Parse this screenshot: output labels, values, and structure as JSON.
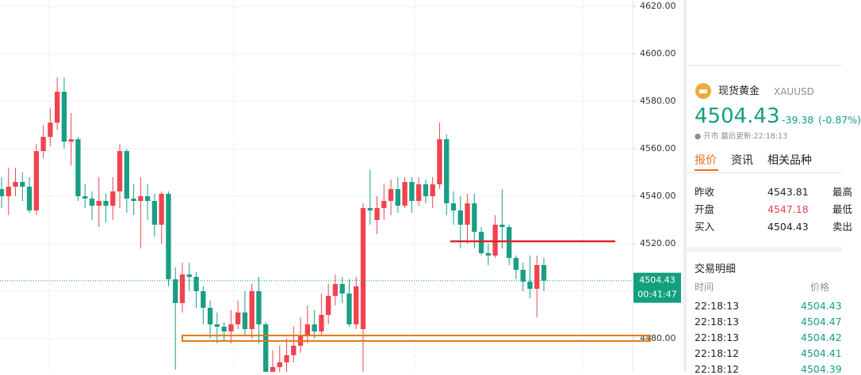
{
  "chart_data": {
    "type": "candlestick",
    "ylim": [
      4466.33,
      4622.67
    ],
    "yticks": [
      {
        "value": 4620,
        "label": "4620.00"
      },
      {
        "value": 4600,
        "label": "4600.00"
      },
      {
        "value": 4580,
        "label": "4580.00"
      },
      {
        "value": 4560,
        "label": "4560.00"
      },
      {
        "value": 4540,
        "label": "4540.00"
      },
      {
        "value": 4520,
        "label": "4520.00"
      },
      {
        "value": 4500,
        "label": "4500.00"
      },
      {
        "value": 4480,
        "label": "4480.00"
      }
    ],
    "up_color": "#f0434f",
    "down_color": "#1a9e86",
    "grid": true,
    "open": [
      4543,
      4540,
      4544,
      4546,
      4544,
      4534,
      4559,
      4565,
      4571,
      4584,
      4563,
      4564,
      4540,
      4539,
      4536,
      4538,
      4536,
      4542,
      4559,
      4539,
      4538,
      4540,
      4538,
      4528,
      4541,
      4505,
      4495,
      4507,
      4506,
      4500,
      4493,
      4486,
      4485,
      4483,
      4486,
      4491,
      4484,
      4500,
      4486,
      4466,
      4468,
      4470,
      4473,
      4477,
      4481,
      4486,
      4483,
      4490,
      4498,
      4503,
      4499,
      4486,
      4484,
      4535,
      4530,
      4535,
      4538,
      4543,
      4536,
      4546,
      4538,
      4545,
      4540,
      4545,
      4564,
      4537,
      4534,
      4528,
      4537,
      4525,
      4516,
      4515,
      4528,
      4527,
      4514,
      4509,
      4504,
      4501,
      4511
    ],
    "high": [
      4548,
      4552,
      4552,
      4550,
      4548,
      4562,
      4570,
      4577,
      4590,
      4590,
      4575,
      4565,
      4545,
      4542,
      4548,
      4541,
      4548,
      4562,
      4560,
      4545,
      4548,
      4545,
      4541,
      4542,
      4542,
      4510,
      4512,
      4512,
      4508,
      4502,
      4496,
      4491,
      4487,
      4492,
      4496,
      4500,
      4503,
      4506,
      4487,
      4475,
      4477,
      4480,
      4485,
      4489,
      4494,
      4492,
      4499,
      4503,
      4507,
      4506,
      4505,
      4506,
      4537,
      4551,
      4540,
      4545,
      4547,
      4548,
      4548,
      4548,
      4548,
      4547,
      4548,
      4571,
      4566,
      4542,
      4540,
      4541,
      4541,
      4527,
      4520,
      4532,
      4543,
      4528,
      4515,
      4512,
      4515,
      4515,
      4514
    ],
    "low": [
      4535,
      4532,
      4540,
      4538,
      4533,
      4532,
      4556,
      4561,
      4568,
      4560,
      4553,
      4538,
      4535,
      4530,
      4527,
      4529,
      4530,
      4535,
      4533,
      4532,
      4518,
      4530,
      4523,
      4520,
      4502,
      4467,
      4491,
      4500,
      4493,
      4486,
      4480,
      4478,
      4479,
      4478,
      4484,
      4481,
      4480,
      4478,
      4466,
      4466,
      4466,
      4466,
      4470,
      4474,
      4478,
      4480,
      4481,
      4486,
      4494,
      4495,
      4485,
      4484,
      4466,
      4528,
      4524,
      4530,
      4532,
      4533,
      4535,
      4533,
      4536,
      4537,
      4535,
      4543,
      4532,
      4528,
      4518,
      4520,
      4518,
      4515,
      4511,
      4514,
      4518,
      4511,
      4505,
      4500,
      4497,
      4489,
      4500
    ],
    "close": [
      4540,
      4544,
      4546,
      4544,
      4534,
      4559,
      4565,
      4571,
      4584,
      4563,
      4564,
      4540,
      4539,
      4536,
      4538,
      4536,
      4542,
      4559,
      4539,
      4538,
      4540,
      4538,
      4528,
      4541,
      4505,
      4495,
      4507,
      4506,
      4500,
      4493,
      4486,
      4485,
      4483,
      4486,
      4491,
      4484,
      4500,
      4486,
      4466,
      4468,
      4470,
      4473,
      4477,
      4481,
      4486,
      4483,
      4490,
      4498,
      4503,
      4499,
      4486,
      4502,
      4535,
      4534,
      4535,
      4538,
      4543,
      4536,
      4546,
      4538,
      4545,
      4540,
      4545,
      4564,
      4537,
      4534,
      4528,
      4537,
      4525,
      4516,
      4515,
      4528,
      4527,
      4514,
      4509,
      4504,
      4501,
      4511,
      4504.43
    ],
    "last_price": {
      "value": 4504.43,
      "label": "4504.43"
    },
    "countdown": "00:41:47",
    "last_price_color": "#13a07f",
    "drawings": [
      {
        "type": "hline",
        "price": 4521,
        "color": "#d9262e"
      },
      {
        "type": "band",
        "low": 4479,
        "high": 4481.3,
        "color": "#e07b12"
      }
    ]
  },
  "panel": {
    "name": "现货黄金",
    "symbol": "XAUUSD",
    "price": "4504.43",
    "change": "-39.38",
    "change_pct": "(-0.87%)",
    "status": "● 开市 最后更新:22:18:13",
    "tabs": [
      "报价",
      "资讯",
      "相关品种"
    ],
    "quote_rows": [
      [
        "昨收",
        "4543.81",
        "最高"
      ],
      [
        "开盘",
        "4547.18",
        "最低"
      ],
      [
        "买入",
        "4504.43",
        "卖出"
      ]
    ],
    "trades_title": "交易明细",
    "trades_header": [
      "时间",
      "价格"
    ],
    "trades": [
      [
        "22:18:13",
        "4504.43"
      ],
      [
        "22:18:13",
        "4504.47"
      ],
      [
        "22:18:13",
        "4504.42"
      ],
      [
        "22:18:12",
        "4504.41"
      ],
      [
        "22:18:12",
        "4504.39"
      ]
    ]
  }
}
